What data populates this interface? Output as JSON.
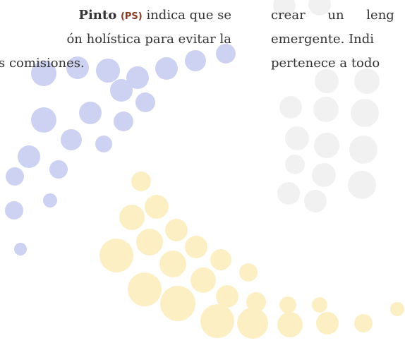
{
  "left_column": {
    "lines": [
      {
        "parts": [
          "Pinto",
          "(PS)",
          "indica que se"
        ]
      },
      {
        "text": "ón holística para evitar la"
      },
      {
        "text": "s comisiones."
      }
    ]
  },
  "right_column": {
    "lines": [
      "crear un leng",
      "emergente. Indi",
      "pertenece a todo"
    ]
  }
}
